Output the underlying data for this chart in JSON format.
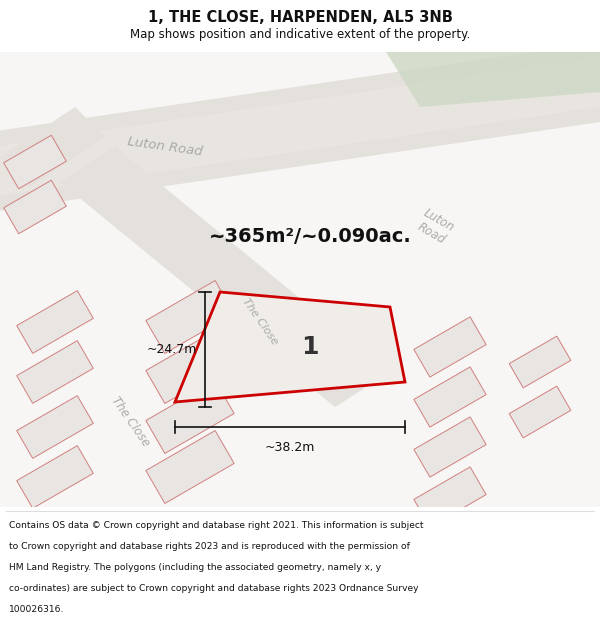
{
  "title_line1": "1, THE CLOSE, HARPENDEN, AL5 3NB",
  "title_line2": "Map shows position and indicative extent of the property.",
  "area_text": "~365m²/~0.090ac.",
  "dim_width": "~38.2m",
  "dim_height": "~24.7m",
  "property_label": "1",
  "footer_lines": [
    "Contains OS data © Crown copyright and database right 2021. This information is subject",
    "to Crown copyright and database rights 2023 and is reproduced with the permission of",
    "HM Land Registry. The polygons (including the associated geometry, namely x, y",
    "co-ordinates) are subject to Crown copyright and database rights 2023 Ordnance Survey",
    "100026316."
  ],
  "map_bg": "#f4f2f0",
  "road_fill": "#e8e4df",
  "road_edge": "#d0ccc7",
  "green_fill": "#cdd8c4",
  "building_fill": "#e2dfdc",
  "building_edge": "#e8a0a0",
  "prop_fill": "#f4f2f0",
  "prop_edge": "#cc0000",
  "dim_color": "#111111",
  "text_gray": "#aaaaaa",
  "title_color": "#111111",
  "footer_color": "#111111"
}
